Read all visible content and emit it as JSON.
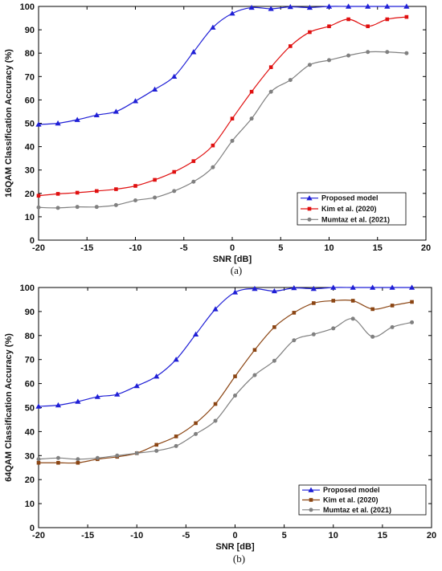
{
  "chart_data": [
    {
      "type": "line",
      "caption": "(a)",
      "xlabel": "SNR [dB]",
      "ylabel": "16QAM Classification Accuracy (%)",
      "xlim": [
        -20,
        20
      ],
      "ylim": [
        0,
        100
      ],
      "xticks": [
        -20,
        -15,
        -10,
        -5,
        0,
        5,
        10,
        15,
        20
      ],
      "yticks": [
        0,
        10,
        20,
        30,
        40,
        50,
        60,
        70,
        80,
        90,
        100
      ],
      "x": [
        -20,
        -18,
        -16,
        -14,
        -12,
        -10,
        -8,
        -6,
        -4,
        -2,
        0,
        2,
        4,
        6,
        8,
        10,
        12,
        14,
        16,
        18
      ],
      "legend_position": "bottom-right",
      "series": [
        {
          "name": "Proposed model",
          "color": "#1f1fd6",
          "marker": "triangle",
          "values": [
            49.5,
            50,
            51.5,
            53.5,
            55,
            59.5,
            64.5,
            70,
            80.5,
            91,
            97,
            99.5,
            99,
            99.8,
            99.5,
            100,
            100,
            100,
            100,
            100
          ]
        },
        {
          "name": "Kim et al. (2020)",
          "color": "#e01010",
          "marker": "square",
          "values": [
            19,
            19.8,
            20.3,
            21,
            21.8,
            23.2,
            25.8,
            29.2,
            33.8,
            40.5,
            52,
            63.5,
            74,
            83,
            89,
            91.5,
            94.5,
            91.5,
            94.5,
            95.5
          ]
        },
        {
          "name": "Mumtaz et al. (2021)",
          "color": "#808080",
          "marker": "circle",
          "values": [
            14,
            13.8,
            14.2,
            14.2,
            15,
            17,
            18.2,
            21,
            25,
            31.2,
            42.5,
            52,
            63.5,
            68.5,
            75,
            77,
            79,
            80.5,
            80.5,
            80
          ]
        }
      ]
    },
    {
      "type": "line",
      "caption": "(b)",
      "xlabel": "SNR [dB]",
      "ylabel": "64QAM Classification Accuracy (%)",
      "xlim": [
        -20,
        20
      ],
      "ylim": [
        0,
        100
      ],
      "xticks": [
        -20,
        -15,
        -10,
        -5,
        0,
        5,
        10,
        15,
        20
      ],
      "yticks": [
        0,
        10,
        20,
        30,
        40,
        50,
        60,
        70,
        80,
        90,
        100
      ],
      "x": [
        -20,
        -18,
        -16,
        -14,
        -12,
        -10,
        -8,
        -6,
        -4,
        -2,
        0,
        2,
        4,
        6,
        8,
        10,
        12,
        14,
        16,
        18
      ],
      "legend_position": "bottom-right",
      "series": [
        {
          "name": "Proposed model",
          "color": "#1f1fd6",
          "marker": "triangle",
          "values": [
            50.5,
            51,
            52.5,
            54.5,
            55.5,
            59,
            63,
            70,
            80.5,
            91,
            98,
            99.5,
            98.5,
            99.8,
            99.5,
            100,
            100,
            100,
            100,
            100
          ]
        },
        {
          "name": "Kim et al. (2020)",
          "color": "#8b4513",
          "marker": "square",
          "values": [
            27,
            27,
            27,
            28.5,
            29.5,
            31,
            34.5,
            38,
            43.5,
            51.5,
            63,
            74,
            83.5,
            89.5,
            93.5,
            94.5,
            94.5,
            91,
            92.5,
            94
          ]
        },
        {
          "name": "Mumtaz et al. (2021)",
          "color": "#808080",
          "marker": "circle",
          "values": [
            28.5,
            29,
            28.5,
            29,
            30,
            31,
            32,
            34,
            39,
            44.5,
            55,
            63.5,
            69.5,
            78,
            80.5,
            83,
            87,
            79.5,
            83.5,
            85.5
          ]
        }
      ]
    }
  ]
}
